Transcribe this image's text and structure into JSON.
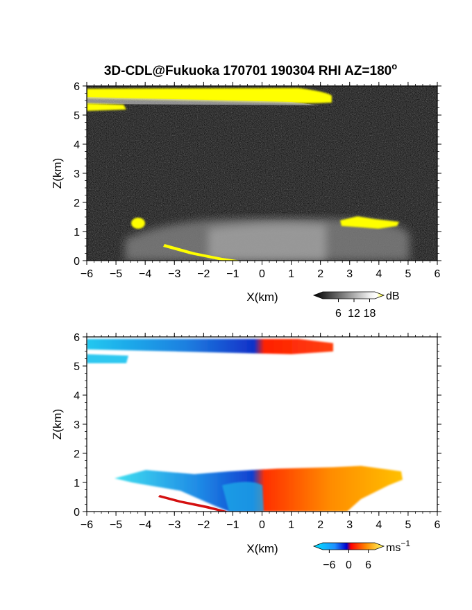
{
  "chart_data": [
    {
      "type": "heatmap",
      "title": "3D-CDL@Fukuoka 170701 190304 RHI AZ=180",
      "title_superscript": "o",
      "xlabel": "X(km)",
      "ylabel": "Z(km)",
      "xlim": [
        -6,
        6
      ],
      "ylim": [
        0,
        6
      ],
      "xticks": [
        "-6",
        "-5",
        "-4",
        "-3",
        "-2",
        "-1",
        "0",
        "1",
        "2",
        "3",
        "4",
        "5",
        "6"
      ],
      "yticks": [
        "0",
        "1",
        "2",
        "3",
        "4",
        "5",
        "6"
      ],
      "background": "noise",
      "colorbar": {
        "label": "dB",
        "ticks": [
          "6",
          "12",
          "18"
        ],
        "range": [
          0,
          20
        ],
        "colors": [
          "#000000",
          "#ffffff",
          "#ffff00"
        ]
      },
      "features": [
        {
          "name": "upper-cloud-layer",
          "x": [
            -6.0,
            2.4
          ],
          "z": [
            5.5,
            5.85
          ],
          "dB": 20
        },
        {
          "name": "lower-cloud-strip",
          "x": [
            -6.0,
            -4.8
          ],
          "z": [
            5.15,
            5.3
          ],
          "dB": 20
        },
        {
          "name": "boundary-layer-echo",
          "x": [
            -4.5,
            4.9
          ],
          "z": [
            0.0,
            1.5
          ],
          "dB": 8
        },
        {
          "name": "left-echo-blob",
          "x": [
            -4.5,
            -3.9
          ],
          "z": [
            1.05,
            1.45
          ],
          "dB": 20
        },
        {
          "name": "right-echo-band",
          "x": [
            2.7,
            4.7
          ],
          "z": [
            1.05,
            1.5
          ],
          "dB": 20
        },
        {
          "name": "ground-clutter-line",
          "x": [
            -3.2,
            -0.6
          ],
          "z": [
            0.0,
            0.5
          ],
          "dB": 20
        }
      ]
    },
    {
      "type": "heatmap",
      "title": "",
      "xlabel": "X(km)",
      "ylabel": "Z(km)",
      "xlim": [
        -6,
        6
      ],
      "ylim": [
        0,
        6
      ],
      "xticks": [
        "-6",
        "-5",
        "-4",
        "-3",
        "-2",
        "-1",
        "0",
        "1",
        "2",
        "3",
        "4",
        "5",
        "6"
      ],
      "yticks": [
        "0",
        "1",
        "2",
        "3",
        "4",
        "5",
        "6"
      ],
      "colorbar": {
        "label": "ms",
        "label_superscript": "−1",
        "ticks": [
          "−6",
          "0",
          "6"
        ],
        "range": [
          -8,
          8
        ],
        "colors": [
          "#00e5ff",
          "#1e90ff",
          "#0000cd",
          "#ff0000",
          "#ff8c00",
          "#ffff66"
        ]
      },
      "features": [
        {
          "name": "upper-cloud-layer",
          "x": [
            -6.0,
            2.4
          ],
          "z": [
            5.55,
            5.9
          ],
          "velocity_range": [
            -6,
            5
          ]
        },
        {
          "name": "lower-cloud-strip",
          "x": [
            -6.0,
            -4.6
          ],
          "z": [
            5.15,
            5.35
          ],
          "velocity": -6
        },
        {
          "name": "boundary-layer-flow",
          "x": [
            -4.6,
            4.8
          ],
          "z": [
            0.0,
            1.55
          ],
          "velocity_range": [
            -6,
            6
          ]
        },
        {
          "name": "ground-clutter-line",
          "x": [
            -3.5,
            -1.0
          ],
          "z": [
            0.0,
            0.5
          ],
          "velocity_range": [
            -4,
            3
          ]
        }
      ]
    }
  ]
}
